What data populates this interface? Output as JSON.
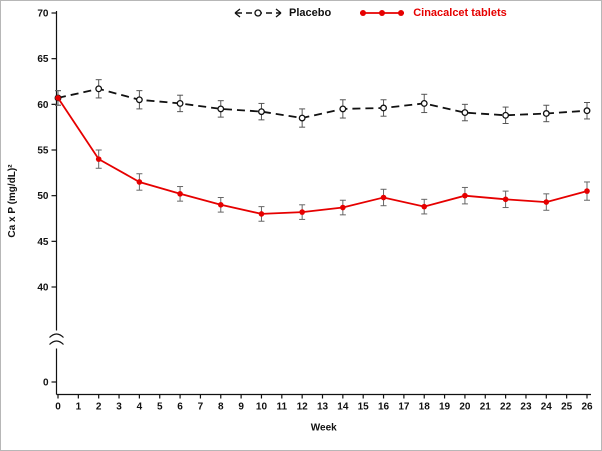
{
  "figure": {
    "legend": {
      "placebo_label": "Placebo",
      "cinacalcet_label": "Cinacalcet tablets"
    },
    "colors": {
      "placebo": "#111111",
      "cinacalcet": "#e60000",
      "axis": "#111111"
    }
  },
  "chart_data": {
    "type": "line",
    "title": "",
    "xlabel": "Week",
    "ylabel": "Ca x P (mg/dL)²",
    "x_ticks": [
      0,
      1,
      2,
      3,
      4,
      5,
      6,
      7,
      8,
      9,
      10,
      11,
      12,
      13,
      14,
      15,
      16,
      17,
      18,
      19,
      20,
      21,
      22,
      23,
      24,
      25,
      26
    ],
    "y_ticks": [
      0,
      40,
      45,
      50,
      55,
      60,
      65,
      70
    ],
    "ylim": [
      40,
      70
    ],
    "xlim": [
      0,
      26
    ],
    "axis_break_between": [
      0,
      40
    ],
    "grid": false,
    "legend_position": "top",
    "x": [
      0,
      2,
      4,
      6,
      8,
      10,
      12,
      14,
      16,
      18,
      20,
      22,
      24,
      26
    ],
    "series": [
      {
        "name": "Placebo",
        "color": "#111111",
        "style": "dashed",
        "marker": "open-circle",
        "values": [
          60.7,
          61.7,
          60.5,
          60.1,
          59.5,
          59.2,
          58.5,
          59.5,
          59.6,
          60.1,
          59.1,
          58.8,
          59.0,
          59.3
        ],
        "errors": [
          0.8,
          1.0,
          1.0,
          0.9,
          0.9,
          0.9,
          1.0,
          1.0,
          0.9,
          1.0,
          0.9,
          0.9,
          0.9,
          0.9
        ]
      },
      {
        "name": "Cinacalcet tablets",
        "color": "#e60000",
        "style": "solid",
        "marker": "filled-circle",
        "values": [
          60.7,
          54.0,
          51.5,
          50.2,
          49.0,
          48.0,
          48.2,
          48.7,
          49.8,
          48.8,
          50.0,
          49.6,
          49.3,
          50.5
        ],
        "errors": [
          0.8,
          1.0,
          0.9,
          0.8,
          0.8,
          0.8,
          0.8,
          0.8,
          0.9,
          0.8,
          0.9,
          0.9,
          0.9,
          1.0
        ]
      }
    ]
  }
}
